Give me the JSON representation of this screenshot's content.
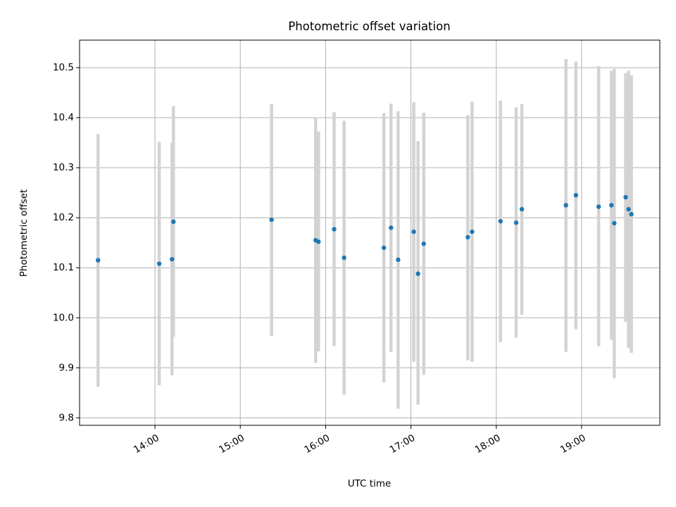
{
  "chart_data": {
    "type": "scatter",
    "title": "Photometric offset variation",
    "xlabel": "UTC time",
    "ylabel": "Photometric offset",
    "x_axis_type": "time",
    "xlim": [
      "13:07",
      "19:55"
    ],
    "ylim": [
      9.785,
      10.555
    ],
    "xticks": [
      "14:00",
      "15:00",
      "16:00",
      "17:00",
      "18:00",
      "19:00"
    ],
    "yticks": [
      9.8,
      9.9,
      10.0,
      10.1,
      10.2,
      10.3,
      10.4,
      10.5
    ],
    "ytick_labels": [
      "9.8",
      "9.9",
      "10.0",
      "10.1",
      "10.2",
      "10.3",
      "10.4",
      "10.5"
    ],
    "grid": true,
    "legend": "none",
    "marker_color": "#1f77b4",
    "errorbar_color": "#d3d3d3",
    "points": [
      {
        "x": "13:20",
        "y": 10.115,
        "low": 9.862,
        "high": 10.367
      },
      {
        "x": "14:03",
        "y": 10.108,
        "low": 9.865,
        "high": 10.352
      },
      {
        "x": "14:12",
        "y": 10.117,
        "low": 9.885,
        "high": 10.35
      },
      {
        "x": "14:13",
        "y": 10.192,
        "low": 9.962,
        "high": 10.423
      },
      {
        "x": "15:22",
        "y": 10.196,
        "low": 9.964,
        "high": 10.427
      },
      {
        "x": "15:53",
        "y": 10.155,
        "low": 9.91,
        "high": 10.4
      },
      {
        "x": "15:55",
        "y": 10.152,
        "low": 9.933,
        "high": 10.372
      },
      {
        "x": "16:06",
        "y": 10.177,
        "low": 9.943,
        "high": 10.411
      },
      {
        "x": "16:13",
        "y": 10.12,
        "low": 9.846,
        "high": 10.394
      },
      {
        "x": "16:41",
        "y": 10.14,
        "low": 9.871,
        "high": 10.409
      },
      {
        "x": "16:46",
        "y": 10.18,
        "low": 9.932,
        "high": 10.428
      },
      {
        "x": "16:51",
        "y": 10.116,
        "low": 9.818,
        "high": 10.413
      },
      {
        "x": "17:02",
        "y": 10.172,
        "low": 9.912,
        "high": 10.431
      },
      {
        "x": "17:05",
        "y": 10.088,
        "low": 9.826,
        "high": 10.353
      },
      {
        "x": "17:09",
        "y": 10.148,
        "low": 9.886,
        "high": 10.41
      },
      {
        "x": "17:40",
        "y": 10.161,
        "low": 9.915,
        "high": 10.405
      },
      {
        "x": "17:43",
        "y": 10.172,
        "low": 9.912,
        "high": 10.432
      },
      {
        "x": "18:03",
        "y": 10.193,
        "low": 9.951,
        "high": 10.434
      },
      {
        "x": "18:14",
        "y": 10.19,
        "low": 9.96,
        "high": 10.421
      },
      {
        "x": "18:18",
        "y": 10.217,
        "low": 10.006,
        "high": 10.427
      },
      {
        "x": "18:49",
        "y": 10.225,
        "low": 9.932,
        "high": 10.517
      },
      {
        "x": "18:56",
        "y": 10.245,
        "low": 9.977,
        "high": 10.512
      },
      {
        "x": "19:12",
        "y": 10.222,
        "low": 9.943,
        "high": 10.503
      },
      {
        "x": "19:21",
        "y": 10.225,
        "low": 9.956,
        "high": 10.494
      },
      {
        "x": "19:23",
        "y": 10.189,
        "low": 9.879,
        "high": 10.498
      },
      {
        "x": "19:31",
        "y": 10.241,
        "low": 9.992,
        "high": 10.489
      },
      {
        "x": "19:33",
        "y": 10.217,
        "low": 9.94,
        "high": 10.494
      },
      {
        "x": "19:35",
        "y": 10.207,
        "low": 9.93,
        "high": 10.485
      }
    ]
  }
}
